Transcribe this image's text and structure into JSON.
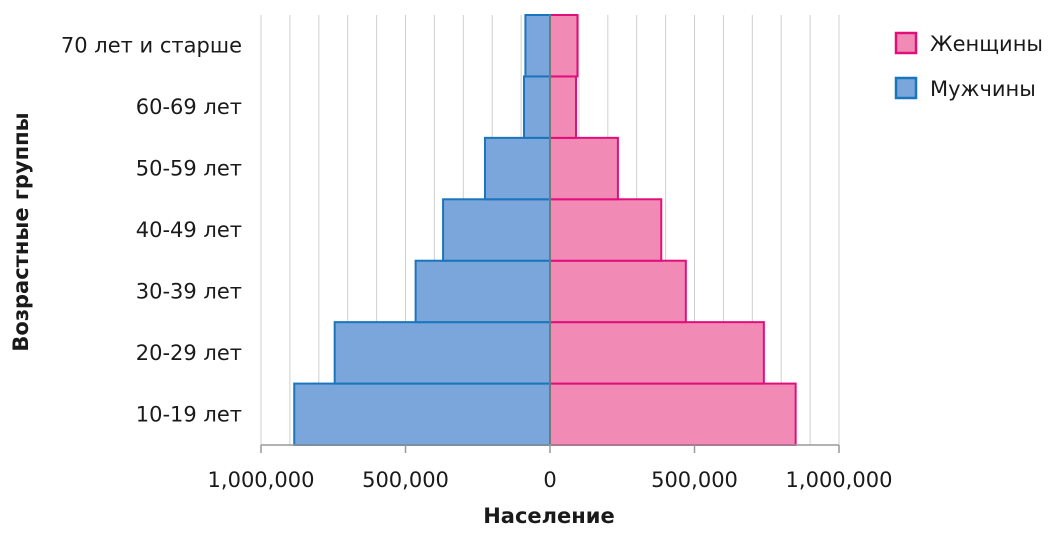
{
  "chart_data": {
    "type": "bar",
    "orientation": "horizontal",
    "subtype": "population-pyramid",
    "title": "",
    "xlabel": "Население",
    "ylabel": "Возрастные группы",
    "categories": [
      "10-19 лет",
      "20-29 лет",
      "30-39 лет",
      "40-49 лет",
      "50-59 лет",
      "60-69 лет",
      "70 лет и старше"
    ],
    "series": [
      {
        "name": "Женщины",
        "side": "right",
        "color": "#F28AB6",
        "stroke": "#E0107B",
        "values": [
          850000,
          740000,
          470000,
          385000,
          235000,
          90000,
          95000
        ]
      },
      {
        "name": "Мужчины",
        "side": "left",
        "color": "#7BA6DB",
        "stroke": "#1B75BC",
        "values": [
          885000,
          745000,
          465000,
          370000,
          225000,
          90000,
          85000
        ]
      }
    ],
    "xlim": [
      -1000000,
      1000000
    ],
    "x_ticks": [
      -1000000,
      -500000,
      0,
      500000,
      1000000
    ],
    "x_tick_labels": [
      "1,000,000",
      "500,000",
      "0",
      "500,000",
      "1,000,000"
    ],
    "x_minor_step": 100000,
    "grid": "vertical",
    "legend": {
      "position": "top-right",
      "order": [
        "Женщины",
        "Мужчины"
      ]
    }
  }
}
